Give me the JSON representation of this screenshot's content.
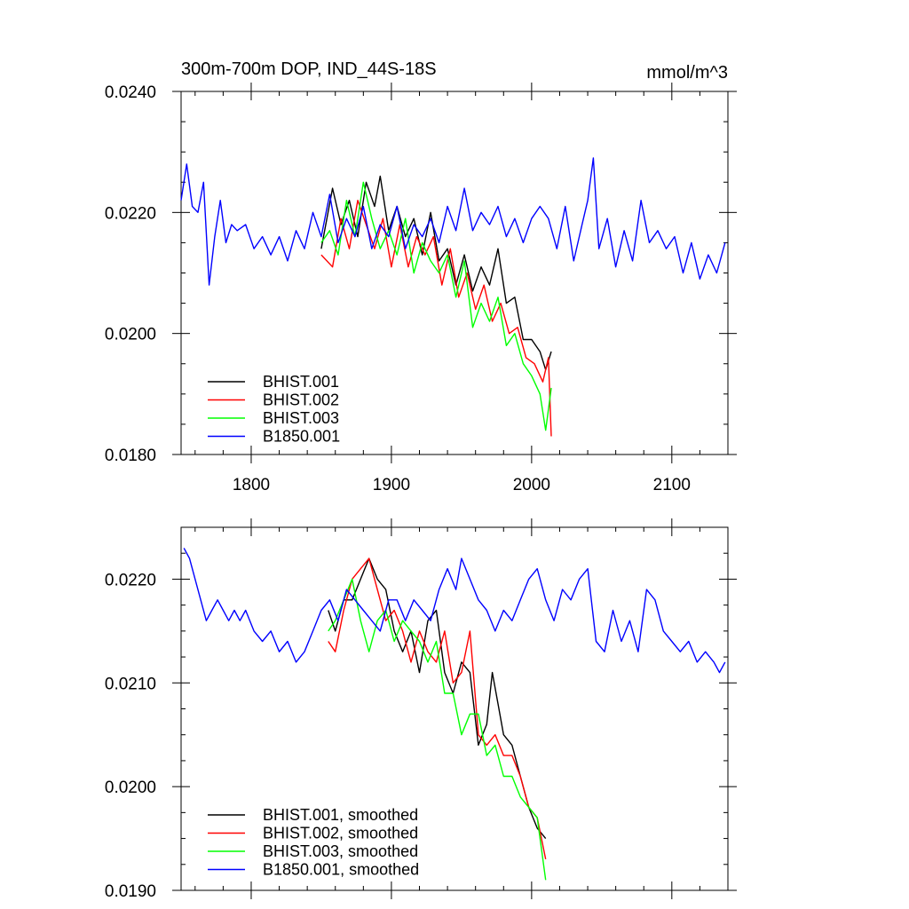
{
  "chart_data": [
    {
      "type": "line",
      "title": "300m-700m DOP, IND_44S-18S",
      "units": "mmol/m^3",
      "xlim": [
        1750,
        2140
      ],
      "ylim": [
        0.018,
        0.024
      ],
      "xticks": [
        1800,
        1900,
        2000,
        2100
      ],
      "xtick_labels": [
        "1800",
        "1900",
        "2000",
        "2100"
      ],
      "yticks": [
        0.018,
        0.02,
        0.022,
        0.024
      ],
      "ytick_labels": [
        "0.0180",
        "0.0200",
        "0.0220",
        "0.0240"
      ],
      "legend_position": "bottom-left",
      "series": [
        {
          "name": "BHIST.001",
          "color": "#000000",
          "x": [
            1850,
            1858,
            1864,
            1870,
            1876,
            1882,
            1888,
            1892,
            1898,
            1904,
            1910,
            1916,
            1922,
            1928,
            1934,
            1940,
            1946,
            1952,
            1958,
            1964,
            1970,
            1976,
            1982,
            1988,
            1994,
            2000,
            2006,
            2010,
            2014
          ],
          "y": [
            0.0214,
            0.0224,
            0.0218,
            0.0222,
            0.0216,
            0.0225,
            0.0221,
            0.0226,
            0.0217,
            0.0221,
            0.0216,
            0.0219,
            0.0213,
            0.022,
            0.0212,
            0.0214,
            0.0208,
            0.0213,
            0.0207,
            0.0211,
            0.0208,
            0.0214,
            0.0205,
            0.0206,
            0.0199,
            0.0199,
            0.0197,
            0.0194,
            0.0197
          ]
        },
        {
          "name": "BHIST.002",
          "color": "#ff0000",
          "x": [
            1850,
            1858,
            1864,
            1870,
            1876,
            1882,
            1888,
            1894,
            1900,
            1906,
            1912,
            1918,
            1924,
            1930,
            1936,
            1942,
            1948,
            1954,
            1960,
            1966,
            1972,
            1978,
            1984,
            1990,
            1996,
            2002,
            2008,
            2012,
            2014
          ],
          "y": [
            0.0213,
            0.0211,
            0.0219,
            0.0214,
            0.0222,
            0.0218,
            0.0214,
            0.0219,
            0.0211,
            0.0218,
            0.0211,
            0.0216,
            0.0213,
            0.0216,
            0.0208,
            0.0214,
            0.0206,
            0.021,
            0.0204,
            0.0208,
            0.0202,
            0.0205,
            0.02,
            0.0201,
            0.0196,
            0.0195,
            0.0192,
            0.0196,
            0.0183
          ]
        },
        {
          "name": "BHIST.003",
          "color": "#00ff00",
          "x": [
            1850,
            1856,
            1862,
            1868,
            1874,
            1880,
            1886,
            1892,
            1898,
            1904,
            1910,
            1916,
            1922,
            1928,
            1934,
            1940,
            1946,
            1952,
            1958,
            1964,
            1970,
            1976,
            1982,
            1988,
            1994,
            2000,
            2006,
            2010,
            2014
          ],
          "y": [
            0.0215,
            0.0217,
            0.0213,
            0.0222,
            0.0216,
            0.0225,
            0.0219,
            0.0214,
            0.0217,
            0.0213,
            0.0219,
            0.021,
            0.0215,
            0.0212,
            0.021,
            0.0213,
            0.0206,
            0.0212,
            0.0201,
            0.0205,
            0.0202,
            0.0206,
            0.0198,
            0.02,
            0.0195,
            0.0193,
            0.019,
            0.0184,
            0.0191
          ]
        },
        {
          "name": "B1850.001",
          "color": "#0000ff",
          "x": [
            1750,
            1754,
            1758,
            1762,
            1766,
            1770,
            1774,
            1778,
            1782,
            1786,
            1790,
            1796,
            1802,
            1808,
            1814,
            1820,
            1826,
            1832,
            1838,
            1844,
            1850,
            1856,
            1862,
            1868,
            1874,
            1880,
            1886,
            1892,
            1898,
            1904,
            1910,
            1916,
            1922,
            1928,
            1934,
            1940,
            1946,
            1952,
            1958,
            1964,
            1970,
            1976,
            1982,
            1988,
            1994,
            2000,
            2006,
            2012,
            2018,
            2024,
            2030,
            2036,
            2040,
            2044,
            2048,
            2054,
            2060,
            2066,
            2072,
            2078,
            2084,
            2090,
            2096,
            2102,
            2108,
            2114,
            2120,
            2126,
            2132,
            2138
          ],
          "y": [
            0.0222,
            0.0228,
            0.0221,
            0.022,
            0.0225,
            0.0208,
            0.0216,
            0.0222,
            0.0215,
            0.0218,
            0.0217,
            0.0218,
            0.0214,
            0.0216,
            0.0213,
            0.0216,
            0.0212,
            0.0217,
            0.0214,
            0.022,
            0.0216,
            0.0223,
            0.0215,
            0.0219,
            0.0216,
            0.0221,
            0.0214,
            0.0218,
            0.0216,
            0.0221,
            0.0214,
            0.0218,
            0.0216,
            0.0219,
            0.0215,
            0.0221,
            0.0217,
            0.0224,
            0.0217,
            0.022,
            0.0218,
            0.0221,
            0.0216,
            0.0219,
            0.0215,
            0.0219,
            0.0221,
            0.0219,
            0.0214,
            0.0221,
            0.0212,
            0.0218,
            0.0222,
            0.0229,
            0.0214,
            0.0219,
            0.0211,
            0.0217,
            0.0212,
            0.0222,
            0.0215,
            0.0217,
            0.0214,
            0.0216,
            0.021,
            0.0215,
            0.0209,
            0.0213,
            0.021,
            0.0215
          ]
        }
      ]
    },
    {
      "type": "line",
      "xlim": [
        1750,
        2140
      ],
      "ylim": [
        0.019,
        0.0225
      ],
      "xticks": [
        1800,
        1900,
        2000,
        2100
      ],
      "yticks": [
        0.019,
        0.02,
        0.021,
        0.022
      ],
      "ytick_labels": [
        "0.0190",
        "0.0200",
        "0.0210",
        "0.0220"
      ],
      "legend_position": "bottom-left",
      "series": [
        {
          "name": "BHIST.001, smoothed",
          "color": "#000000",
          "x": [
            1855,
            1860,
            1866,
            1872,
            1878,
            1884,
            1890,
            1896,
            1902,
            1908,
            1914,
            1920,
            1926,
            1932,
            1938,
            1944,
            1950,
            1956,
            1962,
            1968,
            1972,
            1976,
            1980,
            1986,
            1992,
            1998,
            2004,
            2010
          ],
          "y": [
            0.0217,
            0.0215,
            0.0218,
            0.0218,
            0.022,
            0.0222,
            0.022,
            0.0219,
            0.0215,
            0.0213,
            0.0215,
            0.0211,
            0.0216,
            0.0217,
            0.0211,
            0.0209,
            0.0212,
            0.0211,
            0.0204,
            0.0206,
            0.0211,
            0.0208,
            0.0205,
            0.0204,
            0.0201,
            0.0198,
            0.0196,
            0.0195
          ]
        },
        {
          "name": "BHIST.002, smoothed",
          "color": "#ff0000",
          "x": [
            1855,
            1860,
            1866,
            1872,
            1878,
            1884,
            1890,
            1896,
            1902,
            1908,
            1914,
            1920,
            1926,
            1932,
            1938,
            1944,
            1950,
            1956,
            1962,
            1968,
            1974,
            1980,
            1986,
            1992,
            1998,
            2004,
            2010
          ],
          "y": [
            0.0214,
            0.0213,
            0.0217,
            0.022,
            0.0221,
            0.0222,
            0.0219,
            0.0216,
            0.0217,
            0.0215,
            0.0212,
            0.0215,
            0.0213,
            0.0212,
            0.0215,
            0.021,
            0.0211,
            0.0215,
            0.0205,
            0.0204,
            0.0205,
            0.0203,
            0.0203,
            0.0201,
            0.0198,
            0.0197,
            0.0193
          ]
        },
        {
          "name": "BHIST.003, smoothed",
          "color": "#00ff00",
          "x": [
            1855,
            1860,
            1866,
            1872,
            1878,
            1884,
            1890,
            1896,
            1902,
            1908,
            1914,
            1920,
            1926,
            1932,
            1938,
            1944,
            1950,
            1956,
            1962,
            1968,
            1974,
            1980,
            1986,
            1992,
            1998,
            2004,
            2010
          ],
          "y": [
            0.0215,
            0.0216,
            0.0218,
            0.022,
            0.0216,
            0.0213,
            0.0216,
            0.0217,
            0.0214,
            0.0216,
            0.0215,
            0.0214,
            0.0212,
            0.0214,
            0.0209,
            0.0209,
            0.0205,
            0.0207,
            0.0207,
            0.0203,
            0.0204,
            0.0201,
            0.0201,
            0.0199,
            0.0198,
            0.0197,
            0.0191
          ]
        },
        {
          "name": "B1850.001, smoothed",
          "color": "#0000ff",
          "x": [
            1752,
            1756,
            1760,
            1764,
            1768,
            1772,
            1776,
            1780,
            1784,
            1788,
            1792,
            1796,
            1802,
            1808,
            1814,
            1820,
            1826,
            1832,
            1838,
            1844,
            1850,
            1856,
            1862,
            1868,
            1874,
            1880,
            1886,
            1892,
            1898,
            1904,
            1910,
            1916,
            1922,
            1928,
            1934,
            1940,
            1946,
            1950,
            1956,
            1962,
            1968,
            1974,
            1980,
            1986,
            1992,
            1998,
            2004,
            2010,
            2016,
            2022,
            2028,
            2034,
            2040,
            2046,
            2052,
            2058,
            2064,
            2070,
            2076,
            2082,
            2088,
            2094,
            2100,
            2106,
            2112,
            2118,
            2124,
            2130,
            2134,
            2138
          ],
          "y": [
            0.0223,
            0.0222,
            0.022,
            0.0218,
            0.0216,
            0.0217,
            0.0218,
            0.0217,
            0.0216,
            0.0217,
            0.0216,
            0.0217,
            0.0215,
            0.0214,
            0.0215,
            0.0213,
            0.0214,
            0.0212,
            0.0213,
            0.0215,
            0.0217,
            0.0218,
            0.0216,
            0.0219,
            0.0218,
            0.0217,
            0.0216,
            0.0215,
            0.0218,
            0.0218,
            0.0216,
            0.0218,
            0.0217,
            0.0216,
            0.0219,
            0.0221,
            0.0219,
            0.0222,
            0.022,
            0.0218,
            0.0217,
            0.0215,
            0.0217,
            0.0216,
            0.0218,
            0.022,
            0.0221,
            0.0218,
            0.0216,
            0.0219,
            0.0218,
            0.022,
            0.0221,
            0.0214,
            0.0213,
            0.0217,
            0.0214,
            0.0216,
            0.0213,
            0.0219,
            0.0218,
            0.0215,
            0.0214,
            0.0213,
            0.0214,
            0.0212,
            0.0213,
            0.0212,
            0.0211,
            0.0212
          ]
        }
      ]
    }
  ]
}
